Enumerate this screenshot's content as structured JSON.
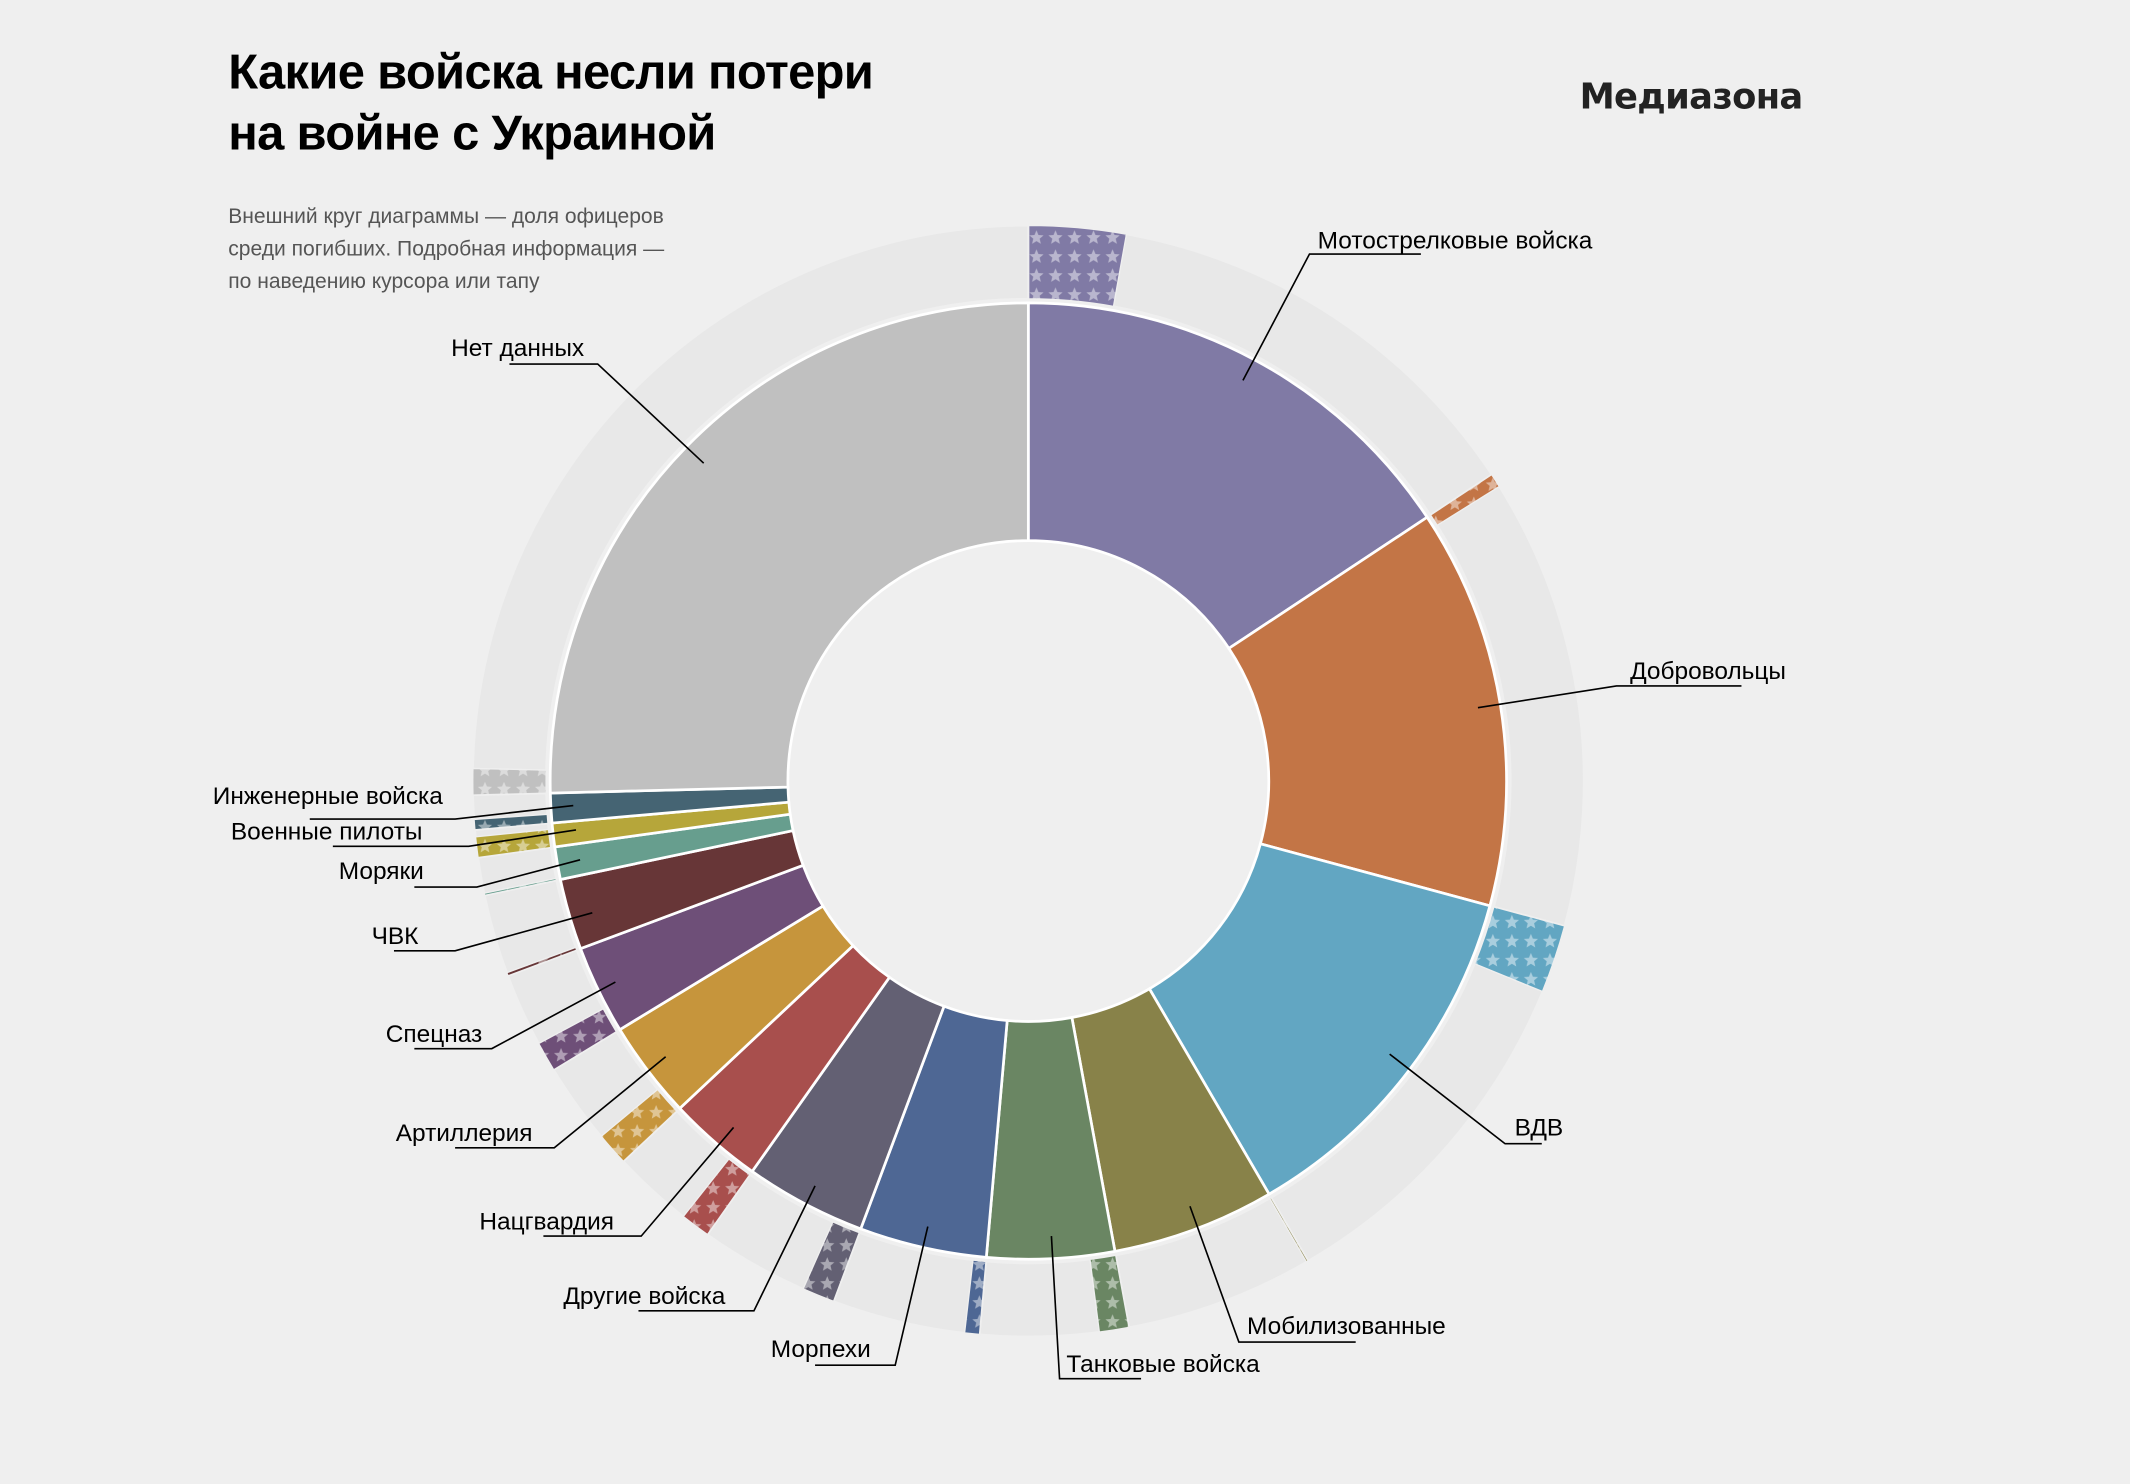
{
  "header": {
    "title_line1": "Какие войска несли потери",
    "title_line2": "на войне с Украиной",
    "subtitle_line1": "Внешний круг диаграммы — доля офицеров",
    "subtitle_line2": "среди погибших. Подробная информация —",
    "subtitle_line3": "по наведению курсора или тапу",
    "logo": "Медиазона"
  },
  "chart_data": {
    "type": "pie",
    "variant": "donut with outer officer-share ring",
    "value_unit": "approximate share of deaths, %",
    "outer_ring_unit": "approximate officer share within category, %",
    "background_ring_color": "#e8e8e8",
    "series": [
      {
        "name": "Мотострелковые войска",
        "value": 15.7,
        "officer_share": 18,
        "color": "#807aa5"
      },
      {
        "name": "Добровольцы",
        "value": 13.5,
        "officer_share": 3,
        "color": "#c37546"
      },
      {
        "name": "ВДВ",
        "value": 12.4,
        "officer_share": 16,
        "color": "#62a6c2"
      },
      {
        "name": "Мобилизованные",
        "value": 5.5,
        "officer_share": 1,
        "color": "#888249"
      },
      {
        "name": "Танковые войска",
        "value": 4.3,
        "officer_share": 20,
        "color": "#6a8663"
      },
      {
        "name": "Морпехи",
        "value": 4.3,
        "officer_share": 10,
        "color": "#4e6794"
      },
      {
        "name": "Другие войска",
        "value": 4.1,
        "officer_share": 23,
        "color": "#636073"
      },
      {
        "name": "Нацгвардия",
        "value": 3.2,
        "officer_share": 27,
        "color": "#a84f4d"
      },
      {
        "name": "Артиллерия",
        "value": 3.3,
        "officer_share": 29,
        "color": "#c6953c"
      },
      {
        "name": "Спецназ",
        "value": 3.0,
        "officer_share": 29,
        "color": "#6e4f78"
      },
      {
        "name": "ЧВК",
        "value": 2.4,
        "officer_share": 4,
        "color": "#673637"
      },
      {
        "name": "Моряки",
        "value": 1.1,
        "officer_share": 6,
        "color": "#679e8e"
      },
      {
        "name": "Военные пилоты",
        "value": 0.8,
        "officer_share": 75,
        "color": "#b6a63a"
      },
      {
        "name": "Инженерные войска",
        "value": 1.0,
        "officer_share": 30,
        "color": "#456473"
      },
      {
        "name": "Нет данных",
        "value": 25.4,
        "officer_share": 3,
        "color": "#c0c0c0"
      }
    ]
  }
}
